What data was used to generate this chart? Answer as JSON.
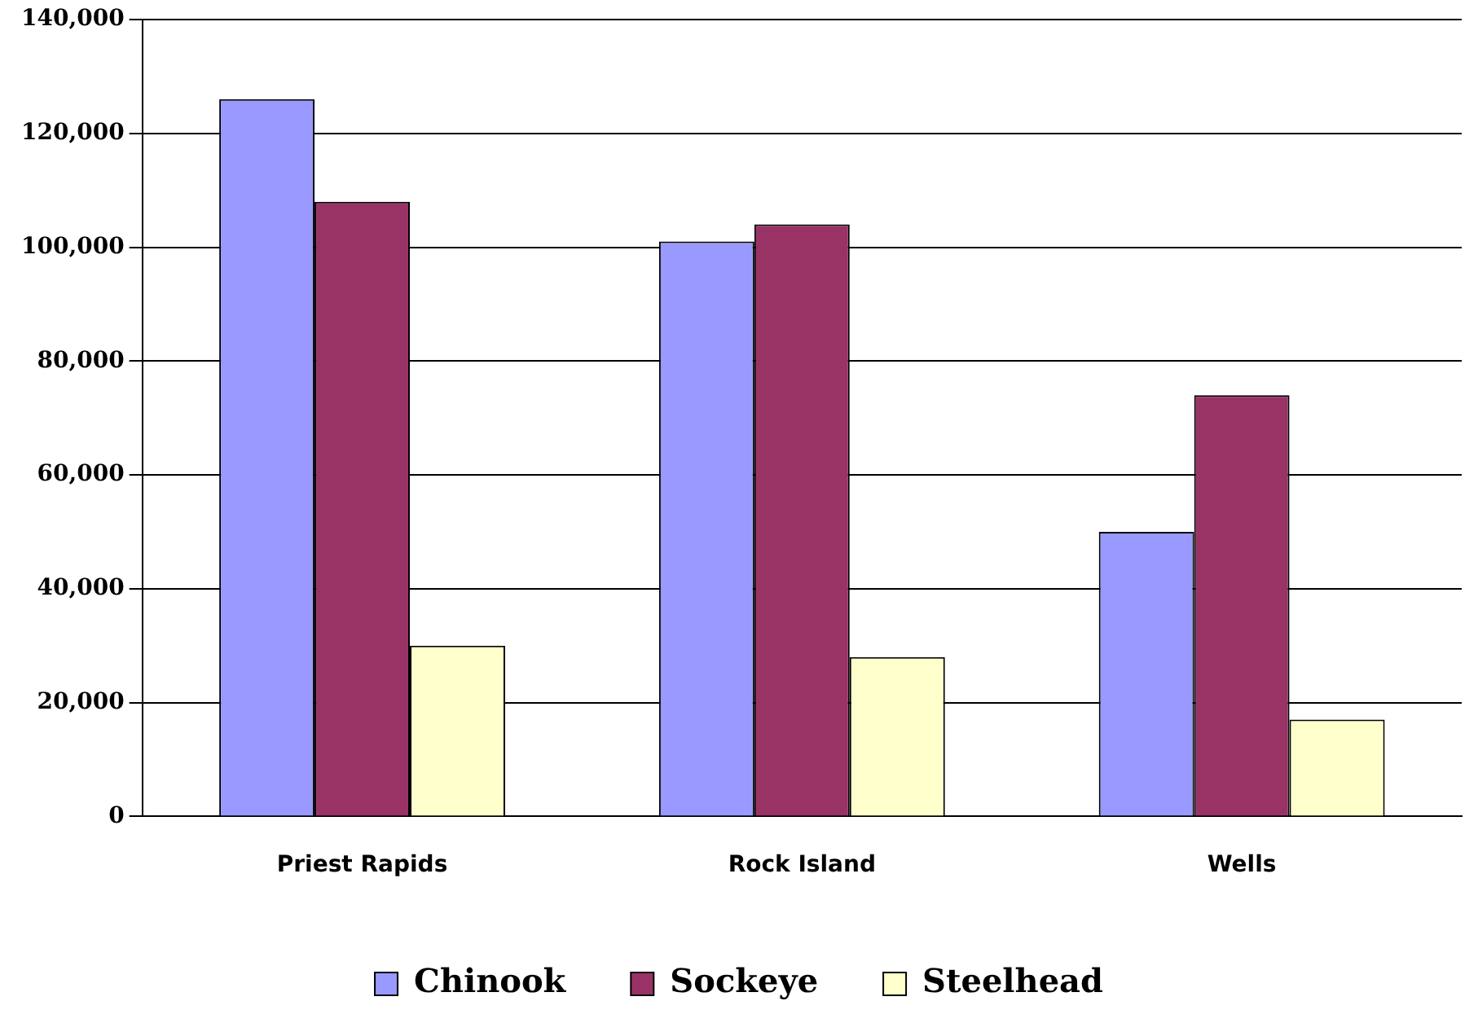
{
  "chart_data": {
    "type": "bar",
    "categories": [
      "Priest Rapids",
      "Rock Island",
      "Wells"
    ],
    "series": [
      {
        "name": "Chinook",
        "color": "#9999ff",
        "values": [
          126000,
          101000,
          50000
        ]
      },
      {
        "name": "Sockeye",
        "color": "#993366",
        "values": [
          108000,
          104000,
          74000
        ]
      },
      {
        "name": "Steelhead",
        "color": "#ffffcc",
        "values": [
          30000,
          28000,
          17000
        ]
      }
    ],
    "ylim": [
      0,
      140000
    ],
    "yticks": [
      {
        "value": 0,
        "label": "0"
      },
      {
        "value": 20000,
        "label": "20,000"
      },
      {
        "value": 40000,
        "label": "40,000"
      },
      {
        "value": 60000,
        "label": "60,000"
      },
      {
        "value": 80000,
        "label": "80,000"
      },
      {
        "value": 100000,
        "label": "100,000"
      },
      {
        "value": 120000,
        "label": "120,000"
      },
      {
        "value": 140000,
        "label": "140,000"
      }
    ],
    "grid": "y",
    "legend": "bottom"
  }
}
